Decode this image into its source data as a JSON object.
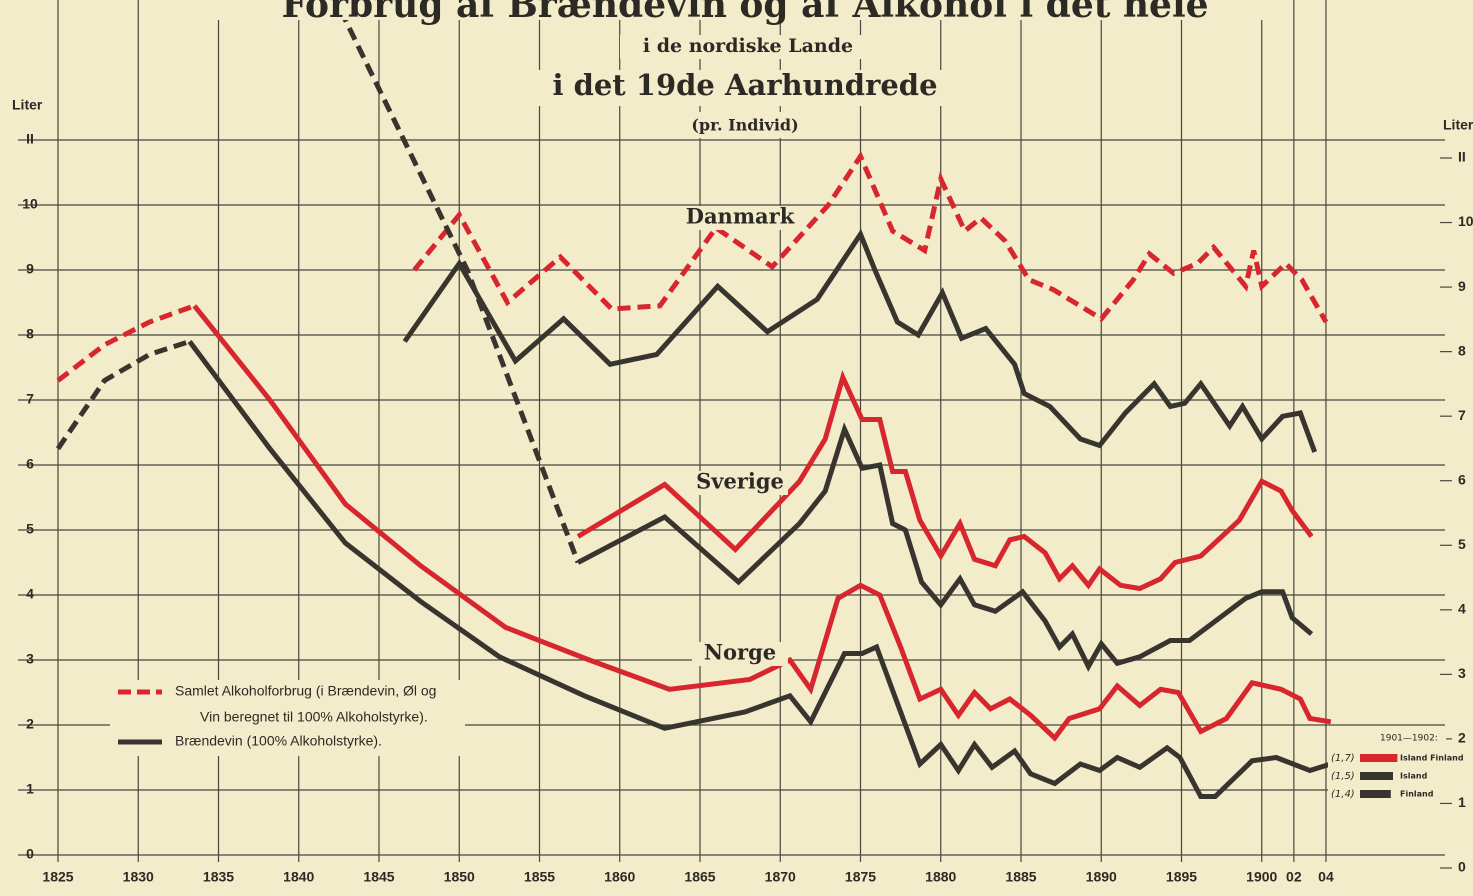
{
  "chart_data": {
    "type": "line",
    "title": "Forbrug af Brændevin og af Alkohol i det hele",
    "subtitle": "i de nordiske Lande",
    "heading": "i det 19de Aarhundrede",
    "note": "(pr. Individ)",
    "ylabel": "Liter",
    "y2label": "Liter",
    "xlim": [
      1825,
      1904
    ],
    "xticks": [
      1825,
      1830,
      1835,
      1840,
      1845,
      1850,
      1855,
      1860,
      1865,
      1870,
      1875,
      1880,
      1885,
      1890,
      1895,
      1900,
      {
        "value": 1902,
        "label": "02"
      },
      {
        "value": 1904,
        "label": "04"
      }
    ],
    "ylim": [
      0,
      11
    ],
    "yticks": [
      0,
      1,
      2,
      3,
      4,
      5,
      6,
      7,
      8,
      9,
      10,
      {
        "value": 11,
        "label": "II"
      }
    ],
    "y2lim": [
      0,
      11
    ],
    "y2ticks": [
      0,
      1,
      2,
      3,
      4,
      5,
      6,
      7,
      8,
      9,
      10,
      {
        "value": 11,
        "label": "II"
      }
    ],
    "grid": true,
    "annotations": [
      "Danmark",
      "Sverige",
      "Norge"
    ],
    "legend": [
      {
        "lines": [
          "Samlet Alkoholforbrug (i Brændevin, Øl og",
          "Vin beregnet til 100% Alkoholstyrke)."
        ],
        "color": "#d8262f"
      },
      {
        "lines": [
          "Brændevin (100% Alkoholstyrke)."
        ],
        "color": "#38342e"
      }
    ],
    "series": [
      {
        "color": "#d8262f",
        "dash": true,
        "x": [
          1847.2,
          1850,
          1853,
          1856.3,
          1859.5,
          1862.5,
          1866,
          1869.5,
          1873,
          1875,
          1877,
          1879,
          1880,
          1881.5,
          1882.5,
          1884,
          1885.5,
          1887,
          1889,
          1890,
          1892,
          1893,
          1894.5,
          1896,
          1897,
          1899,
          1899.5,
          1900,
          1901.5,
          1902.5,
          1904
        ],
        "values": [
          9.0,
          9.85,
          8.5,
          9.2,
          8.4,
          8.45,
          9.65,
          9.05,
          10.0,
          10.75,
          9.6,
          9.3,
          10.4,
          9.6,
          9.8,
          9.45,
          8.85,
          8.7,
          8.4,
          8.25,
          8.85,
          9.25,
          8.95,
          9.1,
          9.35,
          8.75,
          9.3,
          8.75,
          9.1,
          8.85,
          8.2
        ]
      },
      {
        "color": "#38342e",
        "dash": false,
        "x": [
          1846.6,
          1850,
          1853.5,
          1856.5,
          1859.4,
          1862.3,
          1866.1,
          1869.2,
          1872.3,
          1875,
          1875.9,
          1877.3,
          1878.6,
          1880.1,
          1881.3,
          1882.8,
          1884.6,
          1885.2,
          1886.8,
          1888.7,
          1889.9,
          1891.5,
          1893.3,
          1894.3,
          1895.2,
          1896.2,
          1898,
          1898.8,
          1900,
          1901.3,
          1902.4,
          1903.3
        ],
        "values": [
          7.9,
          9.1,
          7.6,
          8.25,
          7.55,
          7.7,
          8.75,
          8.05,
          8.55,
          9.55,
          9.0,
          8.2,
          8.0,
          8.65,
          7.95,
          8.1,
          7.55,
          7.1,
          6.9,
          6.4,
          6.3,
          6.8,
          7.25,
          6.9,
          6.95,
          7.25,
          6.6,
          6.9,
          6.4,
          6.75,
          6.8,
          6.2
        ]
      },
      {
        "color": "#d8262f",
        "dash": false,
        "x": [
          1857.4,
          1862.8,
          1867.2,
          1871.2,
          1872.8,
          1873.9,
          1875.1,
          1876.2,
          1877,
          1877.8,
          1878.7,
          1880,
          1881.2,
          1882.1,
          1883.4,
          1884.3,
          1885.2,
          1886.5,
          1887.4,
          1888.2,
          1889.2,
          1889.9,
          1891.2,
          1892.4,
          1893.7,
          1894.6,
          1896.2,
          1898.6,
          1900,
          1901.2,
          1901.9,
          1903.1
        ],
        "values": [
          4.9,
          5.7,
          4.7,
          5.75,
          6.4,
          7.35,
          6.7,
          6.7,
          5.9,
          5.9,
          5.15,
          4.6,
          5.1,
          4.55,
          4.45,
          4.85,
          4.9,
          4.65,
          4.25,
          4.45,
          4.15,
          4.4,
          4.15,
          4.1,
          4.25,
          4.5,
          4.6,
          5.15,
          5.75,
          5.6,
          5.3,
          4.9
        ]
      },
      {
        "color": "#38342e",
        "dash": false,
        "x": [
          1857.4,
          1862.8,
          1867.4,
          1871.2,
          1872.8,
          1874,
          1875.1,
          1876.2,
          1877,
          1877.8,
          1878.8,
          1880,
          1881.2,
          1882.1,
          1883.4,
          1885.1,
          1886.5,
          1887.4,
          1888.2,
          1889.2,
          1890,
          1891,
          1892.4,
          1894.3,
          1895.5,
          1899,
          1900,
          1901.3,
          1901.9,
          1903.1
        ],
        "values": [
          4.5,
          5.2,
          4.2,
          5.1,
          5.6,
          6.55,
          5.95,
          6.0,
          5.1,
          5.0,
          4.2,
          3.85,
          4.25,
          3.85,
          3.75,
          4.05,
          3.6,
          3.2,
          3.4,
          2.9,
          3.25,
          2.95,
          3.05,
          3.3,
          3.3,
          3.95,
          4.05,
          4.05,
          3.65,
          3.4
        ]
      },
      {
        "color": "#38342e",
        "dash": true,
        "x": [
          1842.6,
          1850.5,
          1857.4
        ],
        "values": [
          13.0,
          9.0,
          4.5
        ]
      },
      {
        "color": "#d8262f",
        "dash": true,
        "x": [
          1825,
          1827.9,
          1830.7,
          1833.5
        ],
        "values": [
          7.3,
          7.85,
          8.2,
          8.45
        ]
      },
      {
        "color": "#d8262f",
        "dash": false,
        "x": [
          1833.5,
          1838.2,
          1842.9,
          1847.6,
          1852.9,
          1858.1,
          1863.1,
          1868.1,
          1870.6,
          1871.9,
          1873.6,
          1875,
          1876.2,
          1877.5,
          1878.7,
          1880,
          1881.1,
          1882.1,
          1883.1,
          1884.3,
          1885.6,
          1887.1,
          1888,
          1889.9,
          1891,
          1892.4,
          1893.7,
          1894.8,
          1896.2,
          1897.8,
          1899.4,
          1901.2,
          1902.4,
          1903,
          1904.3
        ],
        "values": [
          8.45,
          7.0,
          5.4,
          4.45,
          3.5,
          3.0,
          2.55,
          2.7,
          3.0,
          2.55,
          3.95,
          4.15,
          4.0,
          3.2,
          2.4,
          2.55,
          2.15,
          2.5,
          2.25,
          2.4,
          2.15,
          1.8,
          2.1,
          2.25,
          2.6,
          2.3,
          2.55,
          2.5,
          1.9,
          2.1,
          2.65,
          2.55,
          2.4,
          2.1,
          2.05
        ]
      },
      {
        "color": "#38342e",
        "dash": true,
        "x": [
          1825,
          1827.9,
          1830.7,
          1833.2
        ],
        "values": [
          6.25,
          7.3,
          7.7,
          7.9
        ]
      },
      {
        "color": "#38342e",
        "dash": false,
        "x": [
          1833.2,
          1838.2,
          1842.9,
          1847.6,
          1852.5,
          1857.8,
          1862.8,
          1867.8,
          1870.6,
          1871.9,
          1874,
          1875.1,
          1876,
          1877.2,
          1878.7,
          1880,
          1881.1,
          1882.1,
          1883.2,
          1884.6,
          1885.6,
          1887.1,
          1888.7,
          1889.9,
          1891,
          1892.4,
          1894.1,
          1894.9,
          1896.2,
          1897.1,
          1899.4,
          1900.9,
          1903,
          1904.3
        ],
        "values": [
          7.9,
          6.25,
          4.8,
          3.9,
          3.05,
          2.45,
          1.95,
          2.2,
          2.45,
          2.05,
          3.1,
          3.1,
          3.2,
          2.4,
          1.4,
          1.7,
          1.3,
          1.7,
          1.35,
          1.6,
          1.25,
          1.1,
          1.4,
          1.3,
          1.5,
          1.35,
          1.65,
          1.5,
          0.9,
          0.9,
          1.45,
          1.5,
          1.3,
          1.4
        ]
      }
    ],
    "inset": {
      "title": "1901—1902:",
      "rows": [
        {
          "value": 1.7,
          "value_label": "(1,7)",
          "label": "Island Finland",
          "color": "#d8262f"
        },
        {
          "value": 1.5,
          "value_label": "(1,5)",
          "label": "Island",
          "color": "#38342e"
        },
        {
          "value": 1.4,
          "value_label": "(1,4)",
          "label": "Finland",
          "color": "#38342e"
        }
      ]
    }
  }
}
